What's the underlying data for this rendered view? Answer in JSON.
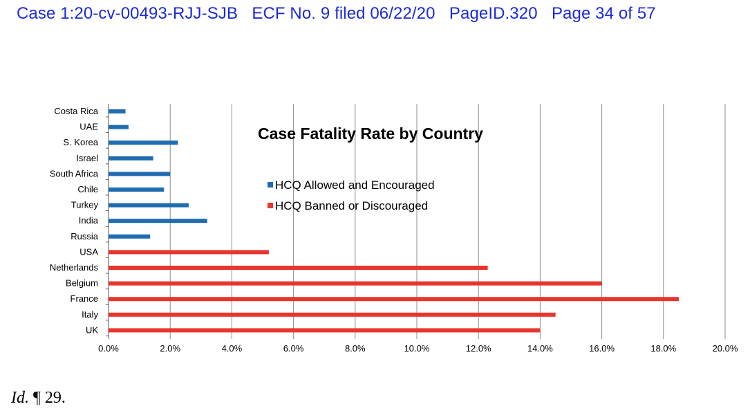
{
  "header": {
    "text": "Case 1:20-cv-00493-RJJ-SJB   ECF No. 9 filed 06/22/20   PageID.320   Page 34 of 57",
    "color": "#1c2bd8"
  },
  "chart_data": {
    "type": "bar",
    "orientation": "horizontal",
    "title": "Case Fatality Rate by Country",
    "xlabel": "",
    "ylabel": "",
    "xlim": [
      0,
      20
    ],
    "x_ticks": [
      "0.0%",
      "2.0%",
      "4.0%",
      "6.0%",
      "8.0%",
      "10.0%",
      "12.0%",
      "14.0%",
      "16.0%",
      "18.0%",
      "20.0%"
    ],
    "grid": "vertical",
    "legend_position": "upper-middle",
    "categories": [
      "Costa Rica",
      "UAE",
      "S. Korea",
      "Israel",
      "South Africa",
      "Chile",
      "Turkey",
      "India",
      "Russia",
      "USA",
      "Netherlands",
      "Belgium",
      "France",
      "Italy",
      "UK"
    ],
    "series": [
      {
        "name": "HCQ Allowed and Encouraged",
        "color": "#1f6cb1",
        "values": [
          0.55,
          0.65,
          2.25,
          1.45,
          2.0,
          1.8,
          2.6,
          3.2,
          1.35,
          null,
          null,
          null,
          null,
          null,
          null
        ]
      },
      {
        "name": "HCQ Banned or Discouraged",
        "color": "#e8362e",
        "values": [
          null,
          null,
          null,
          null,
          null,
          null,
          null,
          null,
          null,
          5.2,
          12.3,
          16.0,
          18.5,
          14.5,
          14.0
        ]
      }
    ]
  },
  "citation": {
    "id": "Id.",
    "para": " ¶ 29."
  }
}
